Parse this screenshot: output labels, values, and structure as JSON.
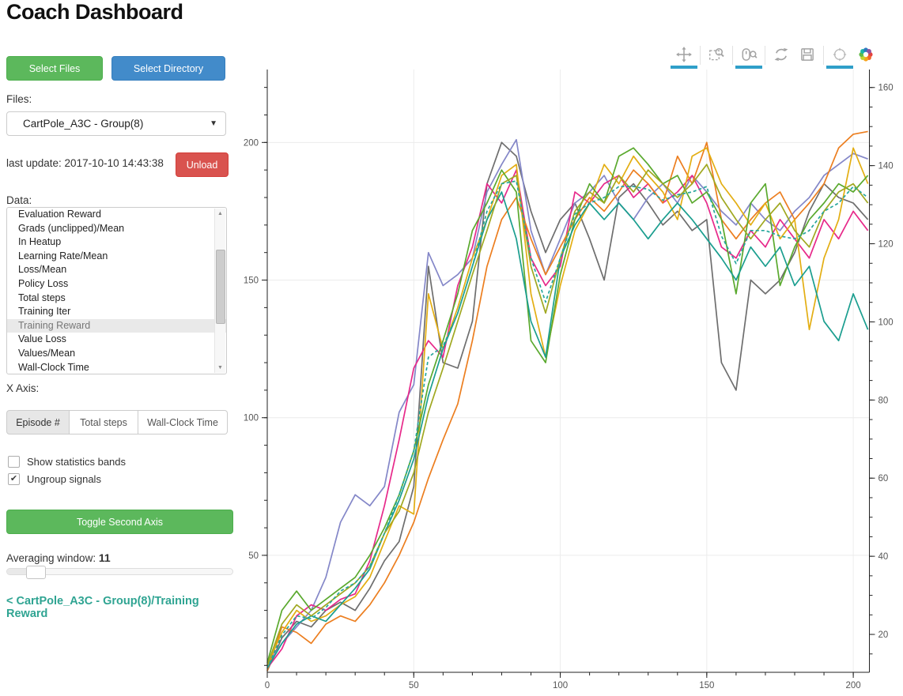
{
  "app": {
    "title": "Coach Dashboard"
  },
  "sidebar": {
    "select_files_label": "Select Files",
    "select_directory_label": "Select Directory",
    "files_label": "Files:",
    "files_selected": "CartPole_A3C - Group(8)",
    "last_update": "last update: 2017-10-10 14:43:38",
    "unload_label": "Unload",
    "data_label": "Data:",
    "data_items": [
      "Evaluation Reward",
      "Grads (unclipped)/Mean",
      "In Heatup",
      "Learning Rate/Mean",
      "Loss/Mean",
      "Policy Loss",
      "Total steps",
      "Training Iter",
      "Training Reward",
      "Value Loss",
      "Values/Mean",
      "Wall-Clock Time"
    ],
    "data_selected_index": 8,
    "x_axis_label": "X Axis:",
    "x_axis_tabs": [
      "Episode #",
      "Total steps",
      "Wall-Clock Time"
    ],
    "x_axis_selected_index": 0,
    "checkboxes": [
      {
        "label": "Show statistics bands",
        "checked": false
      },
      {
        "label": "Ungroup signals",
        "checked": true
      }
    ],
    "toggle_second_axis_label": "Toggle Second Axis",
    "averaging_window_label": "Averaging window:",
    "averaging_window_value": "11",
    "breadcrumb_link": "< CartPole_A3C - Group(8)/Training Reward"
  },
  "colors": {
    "button_green": "#5cb85c",
    "button_blue": "#428bca",
    "button_red": "#d9534f",
    "link_teal": "#2fa492",
    "tool_active_underline": "#2f9fc9",
    "grid": "#ececec",
    "axis": "#222222",
    "tick_label": "#565656"
  },
  "bokeh_toolbar": {
    "tools": [
      {
        "name": "pan",
        "active": true
      },
      {
        "name": "box-zoom",
        "active": false
      },
      {
        "name": "wheel-zoom",
        "active": true
      },
      {
        "name": "reset",
        "active": false
      },
      {
        "name": "save",
        "active": false
      },
      {
        "name": "hover",
        "active": true
      },
      {
        "name": "bokeh-logo",
        "active": false
      }
    ]
  },
  "chart_data": {
    "type": "line",
    "title": "",
    "xlabel": "",
    "ylabel": "",
    "legend": "none",
    "grid": true,
    "x_range": [
      0,
      205.5
    ],
    "y_left_range": [
      7.5,
      226.5
    ],
    "y_right_range": [
      10.3,
      164.6
    ],
    "x_ticks": [
      0,
      50,
      100,
      150,
      200
    ],
    "x_minor_step": 10,
    "y_left_ticks": [
      50,
      100,
      150,
      200
    ],
    "y_left_minor_step": 10,
    "y_right_ticks": [
      20,
      40,
      60,
      80,
      100,
      120,
      140,
      160
    ],
    "y_right_minor_step": 5,
    "x": [
      0,
      5,
      10,
      15,
      20,
      25,
      30,
      35,
      40,
      45,
      50,
      55,
      60,
      65,
      70,
      75,
      80,
      85,
      90,
      95,
      100,
      105,
      110,
      115,
      120,
      125,
      130,
      135,
      140,
      145,
      150,
      155,
      160,
      165,
      170,
      175,
      180,
      185,
      190,
      195,
      200,
      205
    ],
    "series": [
      {
        "name": "run-1-gray",
        "color": "#6e6e6e",
        "dash": "solid",
        "y": [
          8,
          20,
          26,
          24,
          30,
          33,
          30,
          38,
          48,
          55,
          75,
          155,
          120,
          118,
          135,
          185,
          200,
          195,
          175,
          160,
          172,
          178,
          165,
          150,
          180,
          185,
          178,
          170,
          175,
          168,
          172,
          120,
          110,
          150,
          145,
          150,
          160,
          175,
          185,
          180,
          178,
          172
        ]
      },
      {
        "name": "run-2-purple",
        "color": "#8487c8",
        "dash": "solid",
        "y": [
          10,
          18,
          24,
          30,
          42,
          62,
          72,
          68,
          75,
          102,
          112,
          160,
          148,
          152,
          158,
          182,
          192,
          201,
          168,
          152,
          165,
          178,
          182,
          188,
          178,
          172,
          180,
          185,
          178,
          188,
          182,
          175,
          170,
          178,
          172,
          168,
          175,
          180,
          188,
          192,
          196,
          194
        ]
      },
      {
        "name": "run-3-magenta",
        "color": "#e7298a",
        "dash": "solid",
        "y": [
          9,
          16,
          28,
          32,
          30,
          34,
          36,
          48,
          68,
          92,
          118,
          128,
          122,
          148,
          162,
          185,
          178,
          190,
          158,
          148,
          155,
          182,
          178,
          185,
          188,
          180,
          185,
          178,
          182,
          188,
          178,
          162,
          158,
          168,
          162,
          172,
          165,
          158,
          172,
          165,
          175,
          168
        ]
      },
      {
        "name": "run-4-orange",
        "color": "#ec7e1f",
        "dash": "solid",
        "y": [
          8,
          24,
          22,
          18,
          25,
          28,
          26,
          32,
          40,
          50,
          62,
          78,
          92,
          105,
          128,
          155,
          172,
          180,
          165,
          152,
          162,
          172,
          180,
          175,
          182,
          190,
          185,
          178,
          195,
          185,
          200,
          172,
          165,
          172,
          178,
          182,
          172,
          178,
          185,
          198,
          203,
          204
        ]
      },
      {
        "name": "run-5-gold",
        "color": "#e3ae13",
        "dash": "solid",
        "y": [
          10,
          22,
          30,
          26,
          28,
          32,
          35,
          42,
          55,
          68,
          65,
          145,
          125,
          140,
          158,
          172,
          188,
          192,
          145,
          122,
          148,
          168,
          178,
          192,
          185,
          195,
          188,
          182,
          172,
          195,
          198,
          185,
          178,
          170,
          178,
          165,
          172,
          132,
          158,
          172,
          198,
          185
        ]
      },
      {
        "name": "run-6-green",
        "color": "#5aa92e",
        "dash": "solid",
        "y": [
          11,
          30,
          37,
          30,
          34,
          38,
          42,
          50,
          60,
          72,
          88,
          112,
          128,
          145,
          168,
          178,
          190,
          182,
          128,
          120,
          152,
          172,
          185,
          178,
          195,
          198,
          192,
          185,
          188,
          178,
          182,
          172,
          145,
          178,
          185,
          148,
          162,
          172,
          178,
          185,
          182,
          188
        ]
      },
      {
        "name": "run-7-teal",
        "color": "#1b9e8f",
        "dash": "solid",
        "y": [
          9,
          18,
          25,
          28,
          26,
          32,
          38,
          45,
          58,
          70,
          85,
          108,
          125,
          138,
          155,
          172,
          182,
          165,
          135,
          122,
          158,
          170,
          178,
          172,
          178,
          172,
          165,
          172,
          178,
          172,
          165,
          158,
          150,
          162,
          155,
          162,
          148,
          155,
          135,
          128,
          145,
          132
        ]
      },
      {
        "name": "run-8-olive",
        "color": "#a0a821",
        "dash": "solid",
        "y": [
          10,
          25,
          32,
          28,
          32,
          36,
          40,
          46,
          58,
          66,
          80,
          102,
          118,
          135,
          152,
          168,
          185,
          188,
          155,
          138,
          158,
          175,
          182,
          178,
          188,
          182,
          190,
          185,
          180,
          185,
          192,
          180,
          172,
          165,
          172,
          178,
          168,
          162,
          175,
          182,
          185,
          178
        ]
      },
      {
        "name": "group-mean",
        "color": "#26a69c",
        "dash": "dashed",
        "y": [
          9,
          21,
          28,
          27,
          31,
          37,
          40,
          46,
          58,
          72,
          88,
          122,
          126,
          138,
          155,
          175,
          185,
          186,
          158,
          142,
          158,
          174,
          178,
          180,
          184,
          184,
          183,
          179,
          181,
          182,
          184,
          166,
          156,
          168,
          168,
          166,
          165,
          168,
          175,
          178,
          184,
          180
        ]
      }
    ]
  }
}
